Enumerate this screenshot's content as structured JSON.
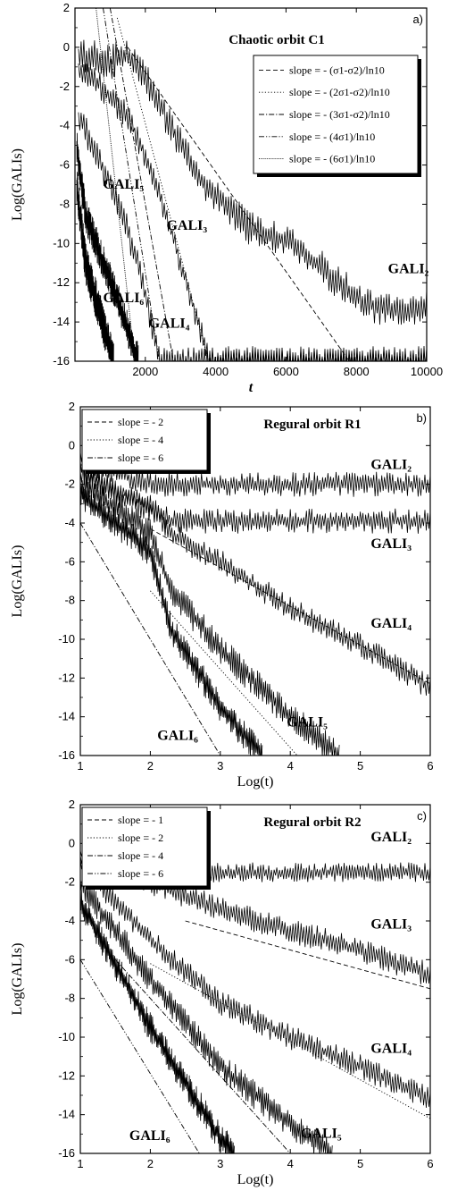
{
  "chart_data": [
    {
      "type": "line",
      "panel_tag": "a)",
      "title": "Chaotic orbit C1",
      "xlabel": "t",
      "ylabel": "Log(GALIs)",
      "xlim": [
        0,
        10000
      ],
      "ylim": [
        -16,
        2
      ],
      "x_scale": "linear",
      "xticks": [
        2000,
        4000,
        6000,
        8000,
        10000
      ],
      "yticks": [
        -16,
        -14,
        -12,
        -10,
        -8,
        -6,
        -4,
        -2,
        0,
        2
      ],
      "legend_position": "top-right",
      "legend": [
        {
          "label": "slope = - (σ1-σ2)/ln10",
          "style": "dashed"
        },
        {
          "label": "slope = - (2σ1-σ2)/ln10",
          "style": "dotted"
        },
        {
          "label": "slope = - (3σ1-σ2)/ln10",
          "style": "dashdot"
        },
        {
          "label": "slope = - (4σ1)/ln10",
          "style": "dashdotdot"
        },
        {
          "label": "slope = - (6σ1)/ln10",
          "style": "densedot"
        }
      ],
      "series": [
        {
          "name": "GALI2",
          "label_pos": [
            8900,
            -11.5
          ],
          "noise": 0.7,
          "points": [
            [
              100,
              -0.3
            ],
            [
              500,
              -0.5
            ],
            [
              1000,
              -0.8
            ],
            [
              1500,
              -0.3
            ],
            [
              2000,
              -1.5
            ],
            [
              2500,
              -3.2
            ],
            [
              3000,
              -5.0
            ],
            [
              3500,
              -6.5
            ],
            [
              4000,
              -7.5
            ],
            [
              4500,
              -8.5
            ],
            [
              5000,
              -9.3
            ],
            [
              6000,
              -9.8
            ],
            [
              7000,
              -11.2
            ],
            [
              8000,
              -12.8
            ],
            [
              9000,
              -13.5
            ],
            [
              10000,
              -13.2
            ]
          ]
        },
        {
          "name": "GALI3",
          "label_pos": [
            2600,
            -9.3
          ],
          "noise": 0.55,
          "points": [
            [
              100,
              -1.0
            ],
            [
              500,
              -1.5
            ],
            [
              1000,
              -2.6
            ],
            [
              1500,
              -3.5
            ],
            [
              2000,
              -5.5
            ],
            [
              2500,
              -8.0
            ],
            [
              3000,
              -11.0
            ],
            [
              3500,
              -14.0
            ],
            [
              3800,
              -16.0
            ],
            [
              10000,
              -16.0
            ]
          ]
        },
        {
          "name": "GALI4",
          "label_pos": [
            2100,
            -14.3
          ],
          "noise": 0.6,
          "points": [
            [
              100,
              -3.5
            ],
            [
              500,
              -5.0
            ],
            [
              1000,
              -7.0
            ],
            [
              1500,
              -9.3
            ],
            [
              2000,
              -12.5
            ],
            [
              2400,
              -16.0
            ],
            [
              10000,
              -16.0
            ]
          ]
        },
        {
          "name": "GALI5",
          "label_pos": [
            800,
            -7.2
          ],
          "noise": 0.7,
          "points": [
            [
              50,
              -5.0
            ],
            [
              300,
              -8.5
            ],
            [
              700,
              -10.5
            ],
            [
              1200,
              -12.8
            ],
            [
              1800,
              -16.0
            ]
          ]
        },
        {
          "name": "GALI6",
          "label_pos": [
            800,
            -13.0
          ],
          "noise": 0.8,
          "points": [
            [
              50,
              -7.0
            ],
            [
              300,
              -11.0
            ],
            [
              700,
              -13.5
            ],
            [
              1100,
              -16.0
            ]
          ]
        }
      ],
      "fit_lines": [
        {
          "style": "dashed",
          "points": [
            [
              1500,
              0.0
            ],
            [
              7800,
              -16.0
            ]
          ]
        },
        {
          "style": "dotted",
          "points": [
            [
              1200,
              1.5
            ],
            [
              3800,
              -16.0
            ]
          ]
        },
        {
          "style": "dashdot",
          "points": [
            [
              1000,
              2.0
            ],
            [
              2800,
              -16.0
            ]
          ]
        },
        {
          "style": "dashdotdot",
          "points": [
            [
              800,
              2.0
            ],
            [
              2400,
              -16.0
            ]
          ]
        },
        {
          "style": "densedot",
          "points": [
            [
              600,
              2.0
            ],
            [
              1700,
              -16.0
            ]
          ]
        }
      ]
    },
    {
      "type": "line",
      "panel_tag": "b)",
      "title": "Regural orbit R1",
      "xlabel": "Log(t)",
      "ylabel": "Log(GALIs)",
      "xlim": [
        1,
        6
      ],
      "ylim": [
        -16,
        2
      ],
      "x_scale": "linear",
      "xticks": [
        1,
        2,
        3,
        4,
        5,
        6
      ],
      "yticks": [
        -16,
        -14,
        -12,
        -10,
        -8,
        -6,
        -4,
        -2,
        0,
        2
      ],
      "legend_position": "top-left",
      "legend": [
        {
          "label": "slope = - 2",
          "style": "dashed"
        },
        {
          "label": "slope = - 4",
          "style": "dotted"
        },
        {
          "label": "slope = - 6",
          "style": "dashdot"
        }
      ],
      "series": [
        {
          "name": "GALI2",
          "label_pos": [
            5.15,
            -1.2
          ],
          "noise": 0.5,
          "points": [
            [
              1.0,
              -0.5
            ],
            [
              1.3,
              -1.2
            ],
            [
              2.0,
              -2.0
            ],
            [
              6.0,
              -2.0
            ]
          ]
        },
        {
          "name": "GALI3",
          "label_pos": [
            5.15,
            -5.3
          ],
          "noise": 0.5,
          "points": [
            [
              1.0,
              -1.0
            ],
            [
              1.5,
              -2.5
            ],
            [
              2.0,
              -3.3
            ],
            [
              2.3,
              -3.9
            ],
            [
              6.0,
              -3.9
            ]
          ]
        },
        {
          "name": "GALI4",
          "label_pos": [
            5.15,
            -9.4
          ],
          "noise": 0.5,
          "points": [
            [
              1.0,
              -1.5
            ],
            [
              2.0,
              -3.0
            ],
            [
              2.3,
              -4.6
            ],
            [
              3.0,
              -6.0
            ],
            [
              4.0,
              -8.4
            ],
            [
              5.0,
              -10.3
            ],
            [
              6.0,
              -12.5
            ]
          ]
        },
        {
          "name": "GALI5",
          "label_pos": [
            3.95,
            -14.5
          ],
          "noise": 0.6,
          "points": [
            [
              1.0,
              -2.0
            ],
            [
              2.0,
              -4.5
            ],
            [
              2.3,
              -7.5
            ],
            [
              3.0,
              -10.5
            ],
            [
              4.0,
              -14.0
            ],
            [
              4.7,
              -16.0
            ]
          ]
        },
        {
          "name": "GALI6",
          "label_pos": [
            2.1,
            -15.2
          ],
          "noise": 0.6,
          "points": [
            [
              1.0,
              -2.5
            ],
            [
              2.0,
              -5.5
            ],
            [
              2.3,
              -9.5
            ],
            [
              3.0,
              -13.5
            ],
            [
              3.6,
              -16.0
            ]
          ]
        }
      ],
      "fit_lines": [
        {
          "style": "dashed",
          "points": [
            [
              2.0,
              -4.3
            ],
            [
              6.0,
              -12.3
            ]
          ]
        },
        {
          "style": "dotted",
          "points": [
            [
              2.0,
              -7.5
            ],
            [
              4.1,
              -16.0
            ]
          ]
        },
        {
          "style": "dashdot",
          "points": [
            [
              1.0,
              -4.0
            ],
            [
              3.0,
              -16.0
            ]
          ]
        }
      ]
    },
    {
      "type": "line",
      "panel_tag": "c)",
      "title": "Regural orbit R2",
      "xlabel": "Log(t)",
      "ylabel": "Log(GALIs)",
      "xlim": [
        1,
        6
      ],
      "ylim": [
        -16,
        2
      ],
      "x_scale": "linear",
      "xticks": [
        1,
        2,
        3,
        4,
        5,
        6
      ],
      "yticks": [
        -16,
        -14,
        -12,
        -10,
        -8,
        -6,
        -4,
        -2,
        0,
        2
      ],
      "legend_position": "top-left",
      "legend": [
        {
          "label": "slope = - 1",
          "style": "dashed"
        },
        {
          "label": "slope = - 2",
          "style": "dotted"
        },
        {
          "label": "slope = - 4",
          "style": "dashdot"
        },
        {
          "label": "slope = - 6",
          "style": "dashdotdot"
        }
      ],
      "series": [
        {
          "name": "GALI2",
          "label_pos": [
            5.15,
            0.1
          ],
          "noise": 0.4,
          "points": [
            [
              1.0,
              -0.5
            ],
            [
              1.5,
              -1.0
            ],
            [
              2.0,
              -1.5
            ],
            [
              6.0,
              -1.5
            ]
          ]
        },
        {
          "name": "GALI3",
          "label_pos": [
            5.15,
            -4.4
          ],
          "noise": 0.5,
          "points": [
            [
              1.0,
              -0.8
            ],
            [
              2.0,
              -2.0
            ],
            [
              3.0,
              -3.4
            ],
            [
              4.0,
              -4.5
            ],
            [
              5.0,
              -5.5
            ],
            [
              6.0,
              -6.8
            ]
          ]
        },
        {
          "name": "GALI4",
          "label_pos": [
            5.15,
            -10.8
          ],
          "noise": 0.5,
          "points": [
            [
              1.0,
              -1.0
            ],
            [
              2.0,
              -5.0
            ],
            [
              3.0,
              -8.2
            ],
            [
              4.0,
              -10.0
            ],
            [
              5.0,
              -11.5
            ],
            [
              6.0,
              -13.2
            ]
          ]
        },
        {
          "name": "GALI5",
          "label_pos": [
            4.15,
            -15.2
          ],
          "noise": 0.6,
          "points": [
            [
              1.0,
              -2.0
            ],
            [
              2.0,
              -7.0
            ],
            [
              3.0,
              -11.5
            ],
            [
              4.0,
              -14.5
            ],
            [
              4.6,
              -16.0
            ]
          ]
        },
        {
          "name": "GALI6",
          "label_pos": [
            1.7,
            -15.3
          ],
          "noise": 0.6,
          "points": [
            [
              1.0,
              -3.0
            ],
            [
              2.0,
              -9.5
            ],
            [
              3.0,
              -15.2
            ],
            [
              3.2,
              -16.0
            ]
          ]
        }
      ],
      "fit_lines": [
        {
          "style": "dashed",
          "points": [
            [
              2.5,
              -4.0
            ],
            [
              6.0,
              -7.5
            ]
          ]
        },
        {
          "style": "dotted",
          "points": [
            [
              2.0,
              -6.2
            ],
            [
              6.0,
              -14.2
            ]
          ]
        },
        {
          "style": "dashdot",
          "points": [
            [
              1.5,
              -6.0
            ],
            [
              4.0,
              -16.0
            ]
          ]
        },
        {
          "style": "dashdotdot",
          "points": [
            [
              1.0,
              -6.0
            ],
            [
              2.7,
              -16.0
            ]
          ]
        }
      ]
    }
  ]
}
